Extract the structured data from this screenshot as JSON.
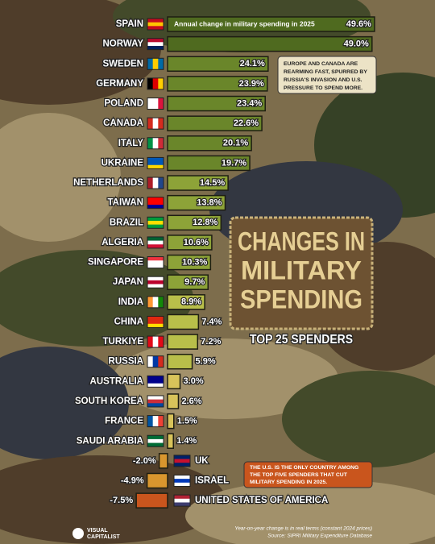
{
  "chart_data": {
    "type": "bar",
    "orientation": "horizontal",
    "title": [
      "CHANGES IN",
      "MILITARY",
      "SPENDING"
    ],
    "subtitle": "TOP 25 SPENDERS",
    "bar_header": "Annual change in military spending in 2025",
    "categories": [
      "SPAIN",
      "NORWAY",
      "SWEDEN",
      "GERMANY",
      "POLAND",
      "CANADA",
      "ITALY",
      "UKRAINE",
      "NETHERLANDS",
      "TAIWAN",
      "BRAZIL",
      "ALGERIA",
      "SINGAPORE",
      "JAPAN",
      "INDIA",
      "CHINA",
      "TURKIYE",
      "RUSSIA",
      "AUSTRALIA",
      "SOUTH KOREA",
      "FRANCE",
      "SAUDI ARABIA",
      "UK",
      "ISRAEL",
      "UNITED STATES OF AMERICA"
    ],
    "values": [
      49.6,
      49.0,
      24.1,
      23.9,
      23.4,
      22.6,
      20.1,
      19.7,
      14.5,
      13.8,
      12.8,
      10.6,
      10.3,
      9.7,
      8.9,
      7.4,
      7.2,
      5.9,
      3.0,
      2.6,
      1.5,
      1.4,
      -2.0,
      -4.9,
      -7.5
    ],
    "value_labels": [
      "49.6%",
      "49.0%",
      "24.1%",
      "23.9%",
      "23.4%",
      "22.6%",
      "20.1%",
      "19.7%",
      "14.5%",
      "13.8%",
      "12.8%",
      "10.6%",
      "10.3%",
      "9.7%",
      "8.9%",
      "7.4%",
      "7.2%",
      "5.9%",
      "3.0%",
      "2.6%",
      "1.5%",
      "1.4%",
      "-2.0%",
      "-4.9%",
      "-7.5%"
    ],
    "annotations": [
      [
        "EUROPE AND CANADA ARE",
        "REARMING FAST, SPURRED BY",
        "RUSSIA'S INVASION AND U.S.",
        "PRESSURE TO SPEND MORE."
      ],
      [
        "THE U.S. IS THE ONLY COUNTRY AMONG",
        "THE TOP FIVE SPENDERS THAT CUT",
        "MILITARY SPENDING IN 2025."
      ]
    ],
    "footnote": "Year-on-year change is in real terms (constant 2024 prices)",
    "source": "Source: SIPRI Military Expenditure Database",
    "brand": [
      "VISUAL",
      "CAPITALIST"
    ]
  }
}
